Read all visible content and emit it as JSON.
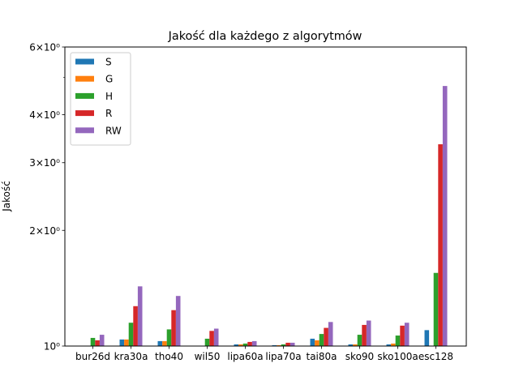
{
  "chart_data": {
    "type": "bar",
    "title": "Jakość dla każdego z algorytmów",
    "xlabel": "",
    "ylabel": "Jakość",
    "yscale": "log",
    "ylim": [
      1.0,
      6.0
    ],
    "y_ticks": [
      {
        "value": 1.0,
        "label": "10⁰"
      },
      {
        "value": 2.0,
        "label": "2×10⁰"
      },
      {
        "value": 3.0,
        "label": "3×10⁰"
      },
      {
        "value": 4.0,
        "label": "4×10⁰"
      },
      {
        "value": 6.0,
        "label": "6×10⁰"
      }
    ],
    "y_minor_ticks": [
      5.0
    ],
    "grid": false,
    "legend_position": "top-left",
    "categories": [
      "bur26d",
      "kra30a",
      "tho40",
      "wil50",
      "lipa60a",
      "lipa70a",
      "tai80a",
      "sko90",
      "sko100a",
      "esc128"
    ],
    "series": [
      {
        "name": "S",
        "color": "#1f77b4",
        "values": [
          1.0,
          1.04,
          1.03,
          1.0,
          1.01,
          1.005,
          1.045,
          1.01,
          1.01,
          1.1
        ]
      },
      {
        "name": "G",
        "color": "#ff7f0e",
        "values": [
          1.0,
          1.04,
          1.03,
          1.0,
          1.01,
          1.005,
          1.035,
          1.01,
          1.015,
          1.0
        ]
      },
      {
        "name": "H",
        "color": "#2ca02c",
        "values": [
          1.05,
          1.15,
          1.105,
          1.045,
          1.015,
          1.01,
          1.075,
          1.07,
          1.065,
          1.55
        ]
      },
      {
        "name": "R",
        "color": "#d62728",
        "values": [
          1.035,
          1.27,
          1.24,
          1.095,
          1.025,
          1.02,
          1.115,
          1.135,
          1.13,
          3.35
        ]
      },
      {
        "name": "RW",
        "color": "#9467bd",
        "values": [
          1.07,
          1.43,
          1.35,
          1.11,
          1.03,
          1.02,
          1.155,
          1.165,
          1.15,
          4.75
        ]
      }
    ]
  }
}
